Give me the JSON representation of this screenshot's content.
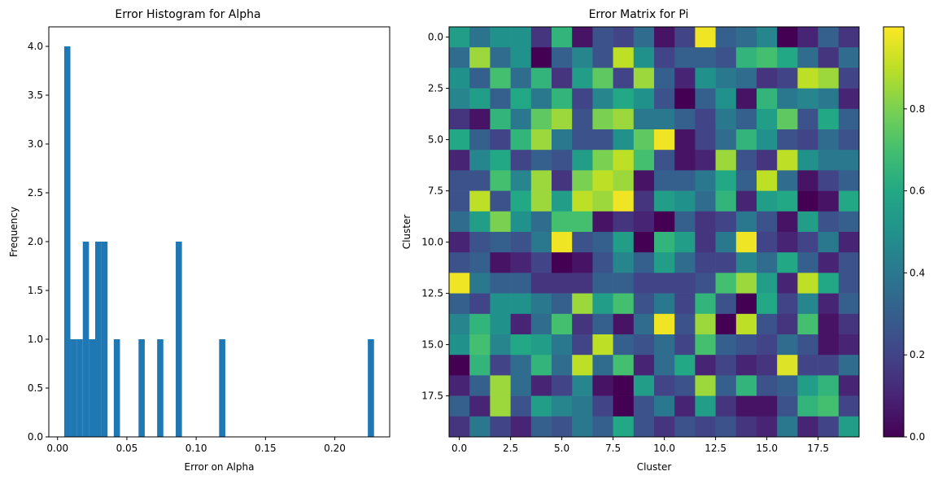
{
  "chart_data": [
    {
      "type": "bar",
      "title": "Error Histogram for Alpha",
      "xlabel": "Error on Alpha",
      "ylabel": "Frequency",
      "xlim": [
        -0.0063,
        0.2396
      ],
      "ylim": [
        0,
        4.2
      ],
      "xticks": [
        0.0,
        0.05,
        0.1,
        0.15,
        0.2
      ],
      "xtick_labels": [
        "0.00",
        "0.05",
        "0.10",
        "0.15",
        "0.20"
      ],
      "yticks": [
        0.0,
        0.5,
        1.0,
        1.5,
        2.0,
        2.5,
        3.0,
        3.5,
        4.0
      ],
      "ytick_labels": [
        "0.0",
        "0.5",
        "1.0",
        "1.5",
        "2.0",
        "2.5",
        "3.0",
        "3.5",
        "4.0"
      ],
      "bin_start": 0.0048,
      "bin_width": 0.00447,
      "counts": [
        4,
        1,
        1,
        2,
        1,
        2,
        2,
        0,
        1,
        0,
        0,
        0,
        1,
        0,
        0,
        1,
        0,
        0,
        2,
        0,
        0,
        0,
        0,
        0,
        0,
        1,
        0,
        0,
        0,
        0,
        0,
        0,
        0,
        0,
        0,
        0,
        0,
        0,
        0,
        0,
        0,
        0,
        0,
        0,
        0,
        0,
        0,
        0,
        0,
        1
      ],
      "color": "#1f77b4"
    },
    {
      "type": "heatmap",
      "title": "Error Matrix for Pi",
      "xlabel": "Cluster",
      "ylabel": "Cluster",
      "xticks": [
        0,
        2.5,
        5,
        7.5,
        10,
        12.5,
        15,
        17.5
      ],
      "xtick_labels": [
        "0.0",
        "2.5",
        "5.0",
        "7.5",
        "10.0",
        "12.5",
        "15.0",
        "17.5"
      ],
      "yticks": [
        0,
        2.5,
        5,
        7.5,
        10,
        12.5,
        15,
        17.5
      ],
      "ytick_labels": [
        "0.0",
        "2.5",
        "5.0",
        "7.5",
        "10.0",
        "12.5",
        "15.0",
        "17.5"
      ],
      "colormap": "viridis",
      "colorbar": {
        "vmin": 0.0,
        "vmax": 1.0,
        "ticks": [
          0.0,
          0.2,
          0.4,
          0.6,
          0.8
        ],
        "tick_labels": [
          "0.0",
          "0.2",
          "0.4",
          "0.6",
          "0.8"
        ]
      },
      "matrix": [
        [
          0.55,
          0.38,
          0.5,
          0.5,
          0.15,
          0.65,
          0.05,
          0.25,
          0.2,
          0.35,
          0.05,
          0.2,
          0.98,
          0.3,
          0.35,
          0.45,
          0.0,
          0.1,
          0.3,
          0.15
        ],
        [
          0.35,
          0.85,
          0.35,
          0.5,
          0.0,
          0.3,
          0.45,
          0.25,
          0.9,
          0.5,
          0.2,
          0.3,
          0.3,
          0.25,
          0.65,
          0.7,
          0.6,
          0.35,
          0.15,
          0.35
        ],
        [
          0.5,
          0.3,
          0.7,
          0.35,
          0.65,
          0.15,
          0.55,
          0.75,
          0.2,
          0.85,
          0.3,
          0.1,
          0.5,
          0.4,
          0.35,
          0.15,
          0.2,
          0.9,
          0.85,
          0.2
        ],
        [
          0.45,
          0.55,
          0.3,
          0.6,
          0.4,
          0.65,
          0.2,
          0.45,
          0.6,
          0.5,
          0.25,
          0.0,
          0.3,
          0.5,
          0.05,
          0.65,
          0.4,
          0.45,
          0.4,
          0.1
        ],
        [
          0.15,
          0.05,
          0.65,
          0.4,
          0.75,
          0.85,
          0.25,
          0.8,
          0.85,
          0.4,
          0.4,
          0.3,
          0.2,
          0.4,
          0.3,
          0.55,
          0.75,
          0.25,
          0.6,
          0.3
        ],
        [
          0.6,
          0.3,
          0.2,
          0.65,
          0.85,
          0.4,
          0.25,
          0.25,
          0.5,
          0.75,
          0.98,
          0.05,
          0.2,
          0.35,
          0.65,
          0.5,
          0.25,
          0.2,
          0.35,
          0.25
        ],
        [
          0.1,
          0.45,
          0.6,
          0.2,
          0.3,
          0.25,
          0.55,
          0.8,
          0.9,
          0.7,
          0.25,
          0.05,
          0.1,
          0.85,
          0.25,
          0.15,
          0.9,
          0.5,
          0.4,
          0.4
        ],
        [
          0.25,
          0.25,
          0.7,
          0.45,
          0.85,
          0.15,
          0.8,
          0.9,
          0.85,
          0.05,
          0.3,
          0.3,
          0.4,
          0.6,
          0.3,
          0.9,
          0.35,
          0.05,
          0.2,
          0.3
        ],
        [
          0.25,
          0.9,
          0.25,
          0.6,
          0.85,
          0.55,
          0.9,
          0.85,
          0.98,
          0.15,
          0.55,
          0.5,
          0.35,
          0.65,
          0.1,
          0.55,
          0.6,
          0.0,
          0.05,
          0.6
        ],
        [
          0.35,
          0.55,
          0.8,
          0.5,
          0.35,
          0.7,
          0.7,
          0.05,
          0.15,
          0.1,
          0.0,
          0.3,
          0.15,
          0.2,
          0.4,
          0.25,
          0.05,
          0.55,
          0.25,
          0.3
        ],
        [
          0.1,
          0.25,
          0.3,
          0.25,
          0.4,
          0.98,
          0.25,
          0.3,
          0.55,
          0.0,
          0.65,
          0.55,
          0.15,
          0.4,
          0.98,
          0.2,
          0.1,
          0.2,
          0.4,
          0.1
        ],
        [
          0.25,
          0.3,
          0.05,
          0.1,
          0.2,
          0.0,
          0.05,
          0.25,
          0.45,
          0.3,
          0.55,
          0.35,
          0.2,
          0.2,
          0.45,
          0.35,
          0.6,
          0.3,
          0.1,
          0.25
        ],
        [
          0.98,
          0.4,
          0.3,
          0.3,
          0.15,
          0.15,
          0.15,
          0.3,
          0.3,
          0.2,
          0.2,
          0.2,
          0.25,
          0.7,
          0.85,
          0.55,
          0.1,
          0.9,
          0.6,
          0.25
        ],
        [
          0.3,
          0.2,
          0.5,
          0.5,
          0.4,
          0.3,
          0.85,
          0.55,
          0.7,
          0.25,
          0.4,
          0.2,
          0.65,
          0.25,
          0.0,
          0.6,
          0.2,
          0.45,
          0.1,
          0.3
        ],
        [
          0.45,
          0.65,
          0.5,
          0.1,
          0.35,
          0.7,
          0.15,
          0.3,
          0.05,
          0.35,
          0.98,
          0.25,
          0.85,
          0.0,
          0.9,
          0.25,
          0.15,
          0.7,
          0.05,
          0.15
        ],
        [
          0.5,
          0.7,
          0.45,
          0.6,
          0.55,
          0.4,
          0.2,
          0.9,
          0.3,
          0.25,
          0.35,
          0.2,
          0.7,
          0.3,
          0.25,
          0.2,
          0.35,
          0.25,
          0.05,
          0.1
        ],
        [
          0.0,
          0.65,
          0.2,
          0.35,
          0.65,
          0.35,
          0.9,
          0.35,
          0.7,
          0.1,
          0.35,
          0.6,
          0.1,
          0.2,
          0.1,
          0.15,
          0.95,
          0.2,
          0.2,
          0.35
        ],
        [
          0.1,
          0.3,
          0.85,
          0.35,
          0.1,
          0.2,
          0.45,
          0.05,
          0.0,
          0.55,
          0.2,
          0.25,
          0.85,
          0.3,
          0.65,
          0.25,
          0.3,
          0.55,
          0.65,
          0.1
        ],
        [
          0.3,
          0.1,
          0.85,
          0.25,
          0.55,
          0.45,
          0.4,
          0.2,
          0.0,
          0.25,
          0.4,
          0.1,
          0.55,
          0.15,
          0.05,
          0.05,
          0.25,
          0.65,
          0.7,
          0.2
        ],
        [
          0.15,
          0.4,
          0.2,
          0.1,
          0.3,
          0.25,
          0.4,
          0.3,
          0.6,
          0.25,
          0.15,
          0.25,
          0.2,
          0.25,
          0.15,
          0.1,
          0.4,
          0.1,
          0.2,
          0.55
        ]
      ]
    }
  ]
}
